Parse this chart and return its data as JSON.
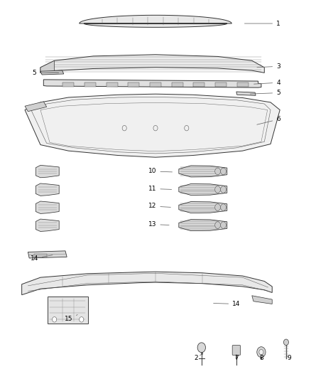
{
  "background_color": "#ffffff",
  "figure_width": 4.38,
  "figure_height": 5.33,
  "dpi": 100,
  "text_color": "#000000",
  "line_color": "#666666",
  "font_size": 6.5,
  "label_settings": [
    [
      1,
      0.895,
      0.938,
      0.78,
      0.938
    ],
    [
      2,
      0.63,
      0.056,
      0.648,
      0.065
    ],
    [
      3,
      0.895,
      0.825,
      0.82,
      0.822
    ],
    [
      4,
      0.895,
      0.782,
      0.81,
      0.778
    ],
    [
      5,
      0.11,
      0.808,
      0.195,
      0.808
    ],
    [
      5,
      0.895,
      0.755,
      0.798,
      0.752
    ],
    [
      6,
      0.895,
      0.685,
      0.82,
      0.67
    ],
    [
      7,
      0.76,
      0.056,
      0.76,
      0.065
    ],
    [
      8,
      0.84,
      0.056,
      0.84,
      0.065
    ],
    [
      9,
      0.93,
      0.056,
      0.918,
      0.065
    ],
    [
      10,
      0.49,
      0.548,
      0.56,
      0.546
    ],
    [
      11,
      0.49,
      0.502,
      0.558,
      0.5
    ],
    [
      12,
      0.49,
      0.456,
      0.555,
      0.453
    ],
    [
      13,
      0.49,
      0.408,
      0.55,
      0.406
    ],
    [
      14,
      0.11,
      0.318,
      0.175,
      0.328
    ],
    [
      14,
      0.76,
      0.198,
      0.68,
      0.2
    ],
    [
      15,
      0.22,
      0.158,
      0.255,
      0.172
    ]
  ]
}
